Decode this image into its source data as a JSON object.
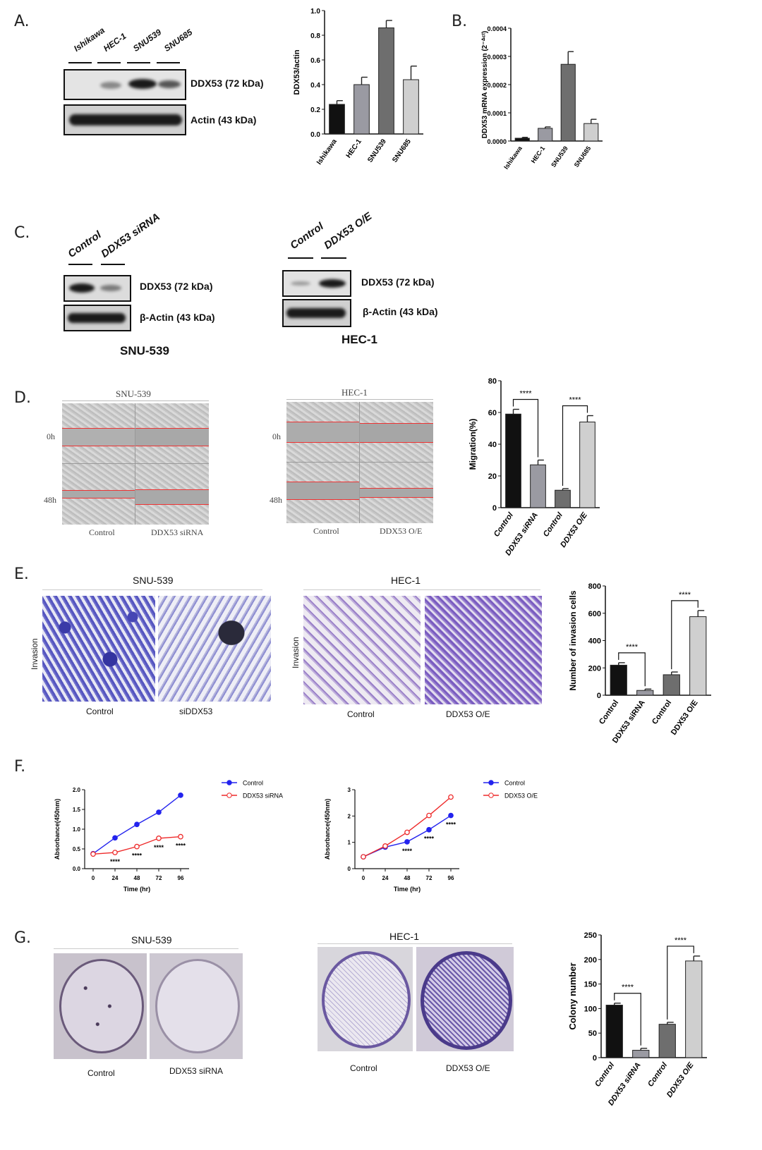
{
  "panel_labels": {
    "a": "A.",
    "b": "B.",
    "c": "C.",
    "d": "D.",
    "e": "E.",
    "f": "F.",
    "g": "G."
  },
  "panel_a": {
    "lanes": [
      "Ishikawa",
      "HEC-1",
      "SNU539",
      "SNU685"
    ],
    "band_labels": {
      "top": "DDX53 (72 kDa)",
      "bottom": "Actin (43 kDa)"
    }
  },
  "panel_c": {
    "left": {
      "lanes": [
        "Control",
        "DDX53 siRNA"
      ],
      "band_top": "DDX53 (72 kDa)",
      "band_bottom": "β-Actin (43 kDa)",
      "cell_line": "SNU-539"
    },
    "right": {
      "lanes": [
        "Control",
        "DDX53 O/E"
      ],
      "band_top": "DDX53 (72 kDa)",
      "band_bottom": "β-Actin (43 kDa)",
      "cell_line": "HEC-1"
    }
  },
  "panel_d": {
    "left": {
      "title": "SNU-539",
      "t0": "0h",
      "t48": "48h",
      "cap_left": "Control",
      "cap_right": "DDX53 siRNA"
    },
    "right": {
      "title": "HEC-1",
      "t0": "0h",
      "t48": "48h",
      "cap_left": "Control",
      "cap_right": "DDX53 O/E"
    }
  },
  "panel_e": {
    "left": {
      "title": "SNU-539",
      "side": "Invasion",
      "cap_left": "Control",
      "cap_right": "siDDX53"
    },
    "right": {
      "title": "HEC-1",
      "side": "Invasion",
      "cap_left": "Control",
      "cap_right": "DDX53 O/E"
    }
  },
  "panel_g": {
    "left": {
      "title": "SNU-539",
      "cap_left": "Control",
      "cap_right": "DDX53 siRNA"
    },
    "right": {
      "title": "HEC-1",
      "cap_left": "Control",
      "cap_right": "DDX53 O/E"
    }
  },
  "colors": {
    "black": "#111111",
    "dark_gray": "#6e6e6e",
    "mid_gray": "#9a9aa2",
    "light_gray": "#cfcfcf",
    "blue": "#2323ee",
    "red": "#ee2a2a"
  },
  "chart_data": [
    {
      "id": "a_bar",
      "type": "bar",
      "ylabel": "DDX53/actin",
      "categories": [
        "Ishikawa",
        "HEC-1",
        "SNU539",
        "SNU685"
      ],
      "values": [
        0.24,
        0.4,
        0.86,
        0.44
      ],
      "errors": [
        0.03,
        0.06,
        0.06,
        0.11
      ],
      "ylim": [
        0,
        1.0
      ],
      "yticks": [
        "0.0",
        "0.2",
        "0.4",
        "0.6",
        "0.8",
        "1.0"
      ]
    },
    {
      "id": "b_bar",
      "type": "bar",
      "ylabel": "DDX53 mRNA expression (2⁻ᐞᶜᵗ)",
      "categories": [
        "Ishikawa",
        "HEC-1",
        "SNU539",
        "SNU685"
      ],
      "values": [
        1e-05,
        4.5e-05,
        0.000272,
        6.2e-05
      ],
      "errors": [
        3e-06,
        5e-06,
        4.5e-05,
        1.5e-05
      ],
      "ylim": [
        0,
        0.0004
      ],
      "yticks": [
        "0.0000",
        "0.0001",
        "0.0002",
        "0.0003",
        "0.0004"
      ]
    },
    {
      "id": "d_bar",
      "type": "bar",
      "ylabel": "Migration(%)",
      "categories": [
        "Control",
        "DDX53 siRNA",
        "Control",
        "DDX53 O/E"
      ],
      "values": [
        59,
        27,
        11,
        54
      ],
      "errors": [
        3,
        3,
        1,
        4
      ],
      "ylim": [
        0,
        80
      ],
      "yticks": [
        "0",
        "20",
        "40",
        "60",
        "80"
      ],
      "significance": [
        "****",
        "****"
      ]
    },
    {
      "id": "e_bar",
      "type": "bar",
      "ylabel": "Number of invasion cells",
      "categories": [
        "Control",
        "DDX53 siRNA",
        "Control",
        "DDX53 O/E"
      ],
      "values": [
        220,
        35,
        150,
        575
      ],
      "errors": [
        18,
        10,
        20,
        45
      ],
      "ylim": [
        0,
        800
      ],
      "yticks": [
        "0",
        "200",
        "400",
        "600",
        "800"
      ],
      "significance": [
        "****",
        "****"
      ]
    },
    {
      "id": "f_left",
      "type": "line",
      "xlabel": "Time (hr)",
      "ylabel": "Absorbance(450nm)",
      "x": [
        0,
        24,
        48,
        72,
        96
      ],
      "ylim": [
        0,
        2.0
      ],
      "yticks": [
        "0.0",
        "0.5",
        "1.0",
        "1.5",
        "2.0"
      ],
      "xticks": [
        "0",
        "24",
        "48",
        "72",
        "96"
      ],
      "series": [
        {
          "name": "Control",
          "values": [
            0.38,
            0.78,
            1.12,
            1.43,
            1.86
          ]
        },
        {
          "name": "DDX53 siRNA",
          "values": [
            0.37,
            0.41,
            0.56,
            0.77,
            0.81
          ]
        }
      ],
      "annotations": [
        "****",
        "****",
        "****",
        "****"
      ]
    },
    {
      "id": "f_right",
      "type": "line",
      "xlabel": "Time (hr)",
      "ylabel": "Absorbance(450nm)",
      "x": [
        0,
        24,
        48,
        72,
        96
      ],
      "ylim": [
        0,
        3
      ],
      "yticks": [
        "0",
        "1",
        "2",
        "3"
      ],
      "xticks": [
        "0",
        "24",
        "48",
        "72",
        "96"
      ],
      "series": [
        {
          "name": "Control",
          "values": [
            0.45,
            0.82,
            1.02,
            1.48,
            2.02
          ]
        },
        {
          "name": "DDX53 O/E",
          "values": [
            0.45,
            0.86,
            1.38,
            2.02,
            2.72
          ]
        }
      ],
      "annotations": [
        "****",
        "****",
        "****"
      ]
    },
    {
      "id": "g_bar",
      "type": "bar",
      "ylabel": "Colony number",
      "categories": [
        "Control",
        "DDX53 siRNA",
        "Control",
        "DDX53 O/E"
      ],
      "values": [
        107,
        15,
        68,
        197
      ],
      "errors": [
        4,
        4,
        4,
        10
      ],
      "ylim": [
        0,
        250
      ],
      "yticks": [
        "0",
        "50",
        "100",
        "150",
        "200",
        "250"
      ],
      "significance": [
        "****",
        "****"
      ]
    }
  ]
}
